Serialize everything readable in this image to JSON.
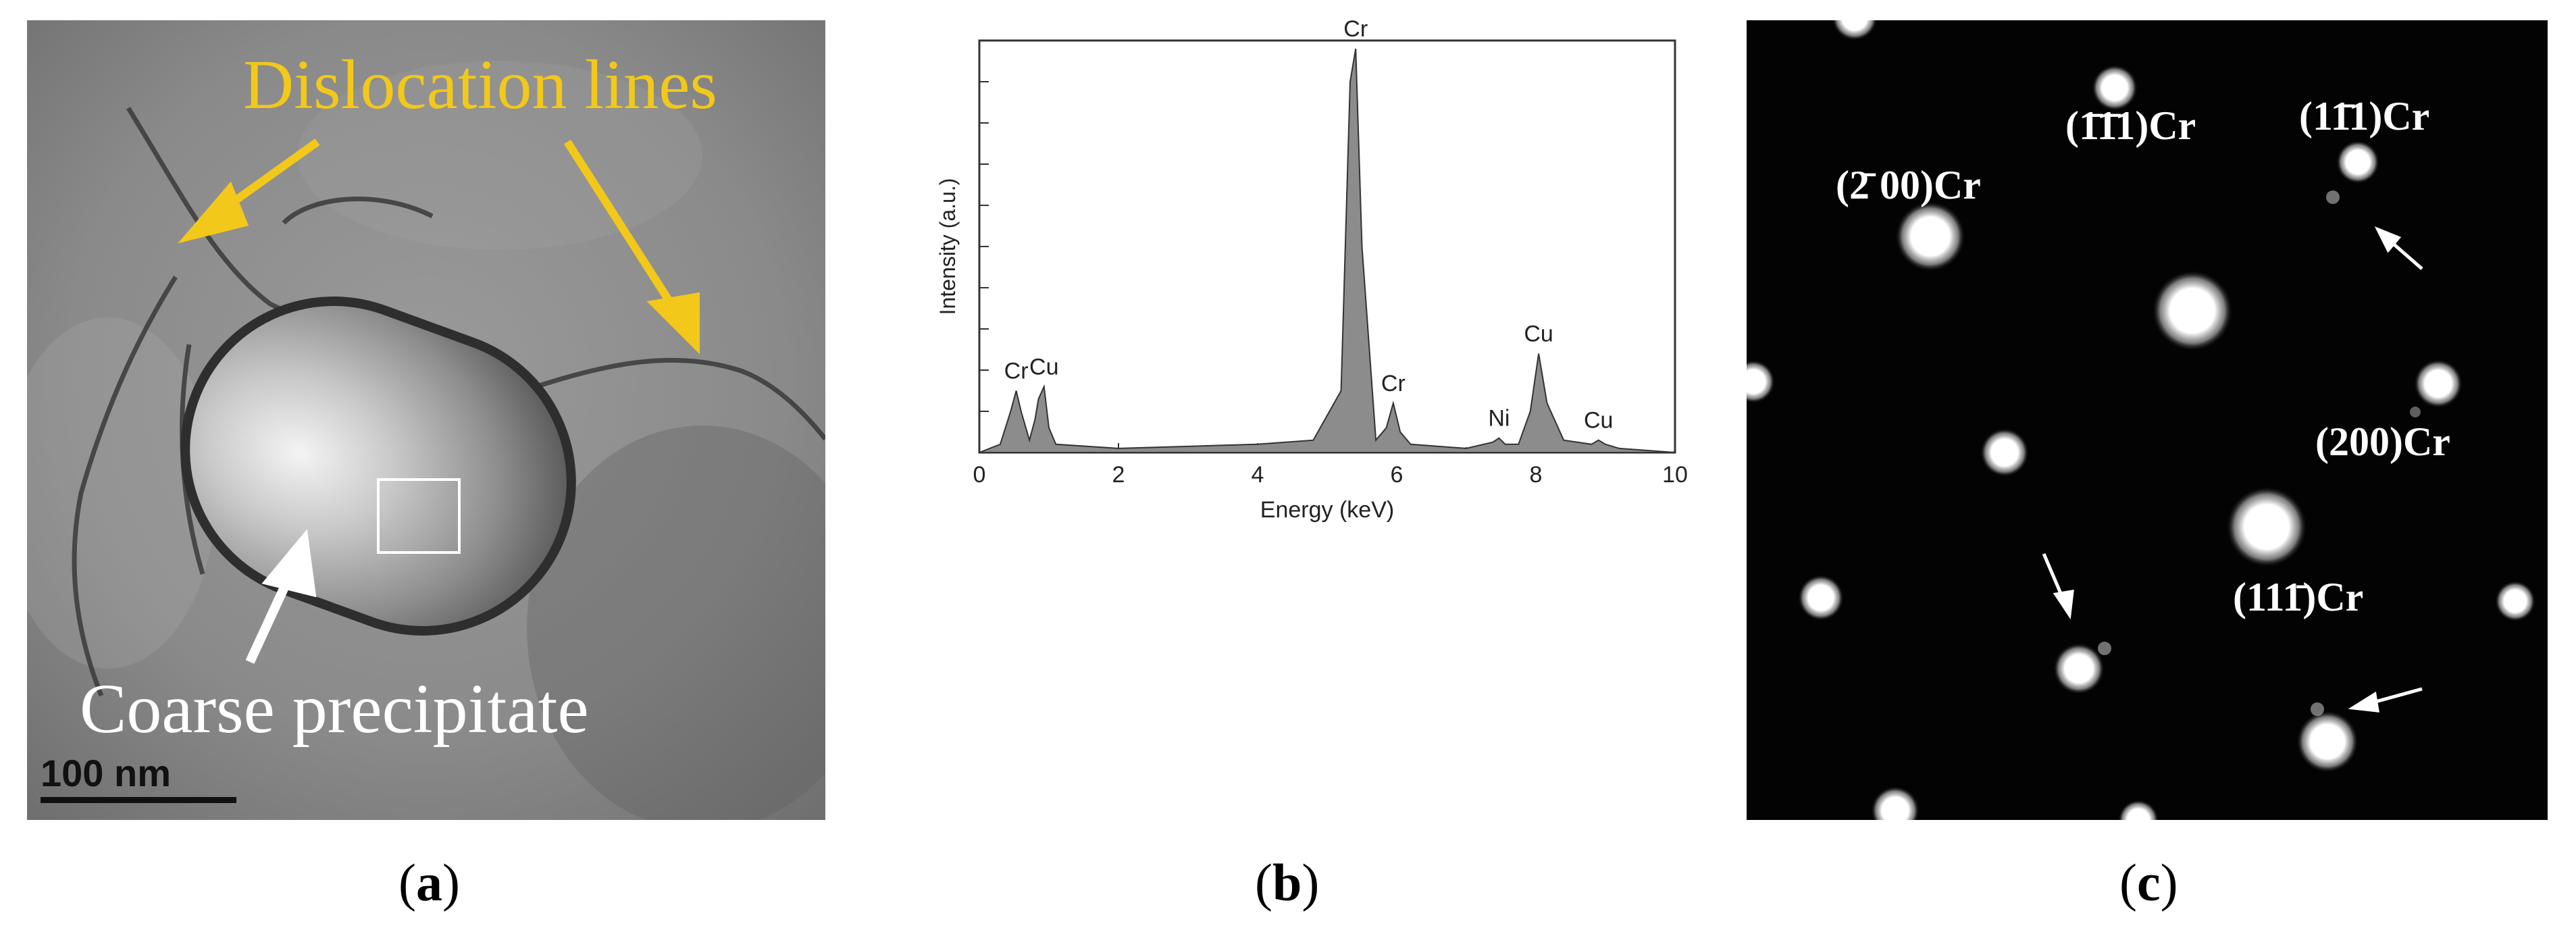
{
  "figure": {
    "captions": [
      {
        "letter": "a"
      },
      {
        "letter": "b"
      },
      {
        "letter": "c"
      }
    ]
  },
  "panel_a": {
    "label_dislocation": "Dislocation lines",
    "label_precipitate": "Coarse precipitate",
    "scale_bar": "100 nm",
    "label_color": "#F2C81A"
  },
  "panel_b": {
    "chart_data": {
      "type": "area",
      "xlabel": "Energy (keV)",
      "ylabel": "Intensity (a.u.)",
      "xlim": [
        0,
        10
      ],
      "x_ticks": [
        "0",
        "2",
        "4",
        "6",
        "8",
        "10"
      ],
      "y_ticks_labeled": false,
      "grid": false,
      "series": [
        {
          "x": [
            0.0,
            0.3,
            0.45,
            0.53,
            0.6,
            0.72,
            0.8,
            0.85,
            0.93,
            1.0,
            1.1,
            2.0,
            3.0,
            4.0,
            4.8,
            5.2,
            5.33,
            5.41,
            5.5,
            5.7,
            5.85,
            5.95,
            6.05,
            6.2,
            7.0,
            7.38,
            7.47,
            7.56,
            7.75,
            7.92,
            8.04,
            8.16,
            8.4,
            8.8,
            8.9,
            9.0,
            9.2,
            10.0
          ],
          "values": [
            0.0,
            0.02,
            0.1,
            0.15,
            0.1,
            0.03,
            0.08,
            0.13,
            0.16,
            0.06,
            0.02,
            0.01,
            0.015,
            0.02,
            0.03,
            0.15,
            0.9,
            0.98,
            0.5,
            0.03,
            0.06,
            0.12,
            0.05,
            0.02,
            0.01,
            0.025,
            0.035,
            0.02,
            0.02,
            0.1,
            0.24,
            0.12,
            0.03,
            0.02,
            0.03,
            0.02,
            0.01,
            0.0
          ]
        }
      ],
      "peak_labels": [
        {
          "text": "Cr",
          "x": 0.53,
          "y": 0.15
        },
        {
          "text": "Cu",
          "x": 0.93,
          "y": 0.16
        },
        {
          "text": "Cr",
          "x": 5.41,
          "y": 0.98
        },
        {
          "text": "Cr",
          "x": 5.95,
          "y": 0.12
        },
        {
          "text": "Ni",
          "x": 7.47,
          "y": 0.035
        },
        {
          "text": "Cu",
          "x": 8.04,
          "y": 0.24
        },
        {
          "text": "Cu",
          "x": 8.9,
          "y": 0.03
        }
      ],
      "fill_color": "#8C8C8C"
    }
  },
  "panel_c": {
    "labels": {
      "bar200": "(2̄ 00)Cr",
      "bar1bar11": "(1̄1̄1)Cr",
      "one_bar1_1": "(11̄1)Cr",
      "l200": "(200)Cr",
      "l11bar1": "(111̄)Cr"
    }
  }
}
